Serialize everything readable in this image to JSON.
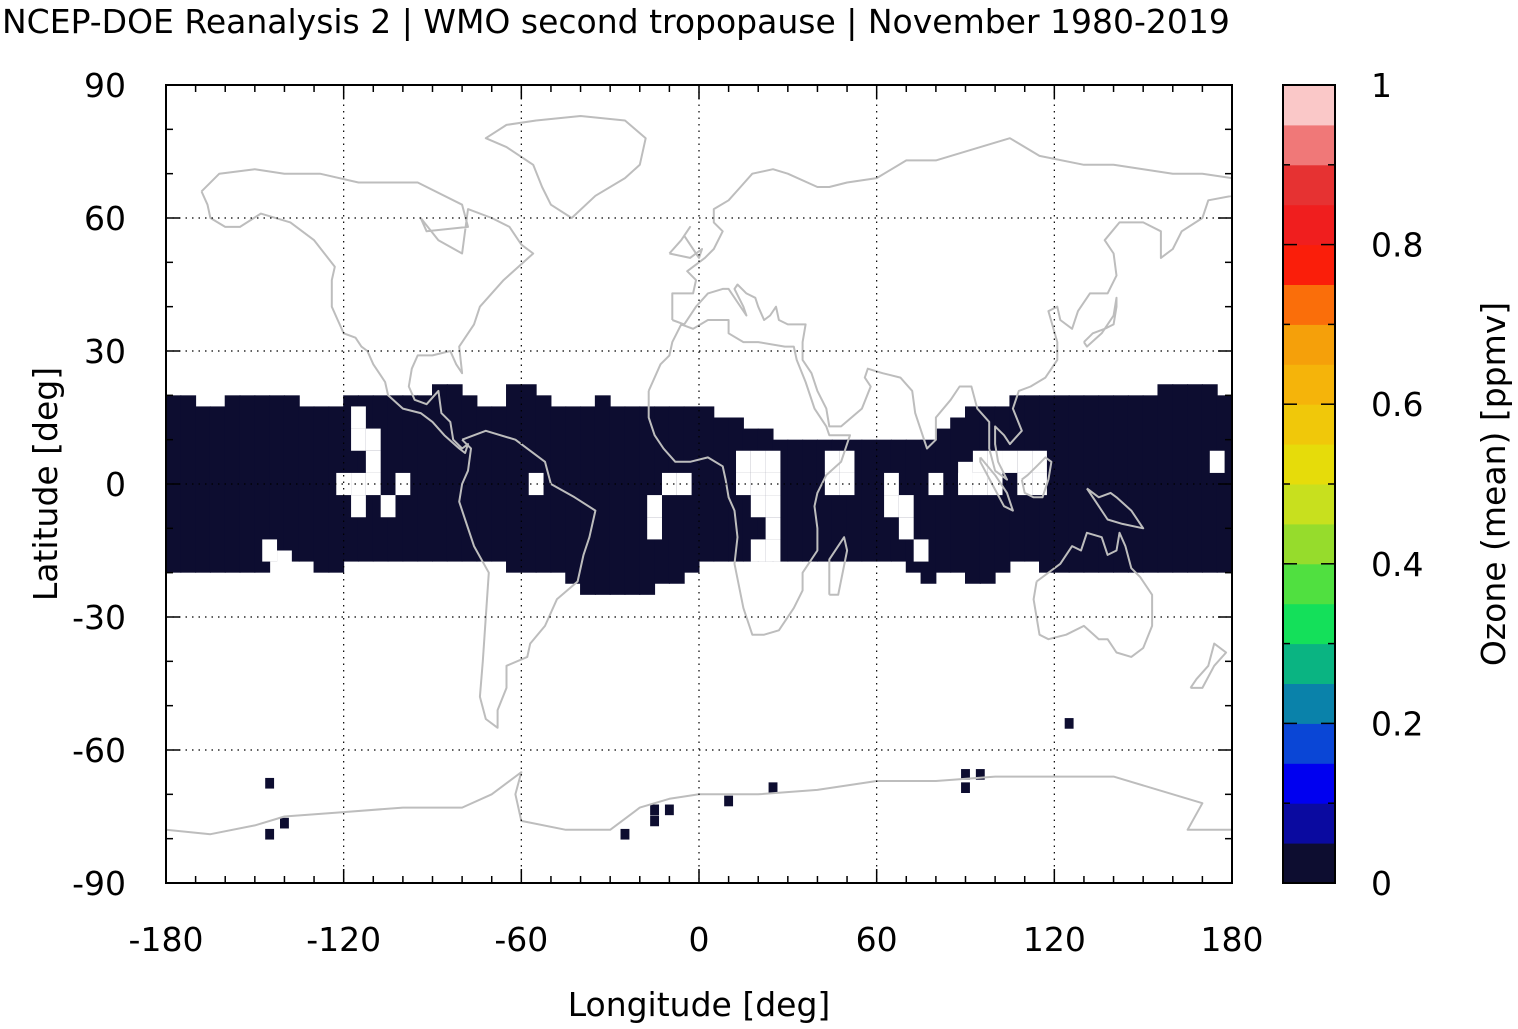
{
  "title": "NCEP-DOE Reanalysis 2 | WMO second tropopause | November 1980-2019",
  "chart_data": {
    "type": "heatmap",
    "title": "NCEP-DOE Reanalysis 2 | WMO second tropopause | November 1980-2019",
    "xlabel": "Longitude [deg]",
    "ylabel": "Latitude [deg]",
    "xlim": [
      -180,
      180
    ],
    "ylim": [
      -90,
      90
    ],
    "xticks": [
      "-180",
      "-120",
      "-60",
      "0",
      "60",
      "120",
      "180"
    ],
    "yticks": [
      "90",
      "60",
      "30",
      "0",
      "-30",
      "-60",
      "-90"
    ],
    "grid": true,
    "colorbar": {
      "label": "Ozone (mean) [ppmv]",
      "range": [
        0,
        1
      ],
      "ticks": [
        "0",
        "0.2",
        "0.4",
        "0.6",
        "0.8",
        "1"
      ],
      "colors": [
        "#0d0d30",
        "#0a0aa0",
        "#0000f0",
        "#0a46d6",
        "#0a82aa",
        "#0ab482",
        "#14e05a",
        "#50e040",
        "#96dc2c",
        "#c8e01e",
        "#e6dc0a",
        "#f0c80a",
        "#f5b40a",
        "#f5a00a",
        "#fa6e0a",
        "#fa1e0a",
        "#f01e1e",
        "#e63232",
        "#f07878",
        "#fac8c8"
      ]
    },
    "value_in_band": 0.0,
    "tropical_band": {
      "lat_min": -20,
      "lat_max": 20,
      "dlon": 5,
      "north_edge": [
        20,
        20,
        17.5,
        17.5,
        20,
        20,
        20,
        20,
        20,
        17.5,
        17.5,
        17.5,
        20,
        20,
        20,
        20,
        20,
        20,
        22.5,
        22.5,
        20,
        17.5,
        17.5,
        22.5,
        22.5,
        20,
        17.5,
        17.5,
        17.5,
        20,
        17.5,
        17.5,
        17.5,
        17.5,
        17.5,
        17.5,
        17.5,
        15,
        15,
        12.5,
        12.5,
        10,
        10,
        10,
        10,
        10,
        10,
        10,
        10,
        10,
        10,
        10,
        12.5,
        15,
        17.5,
        17.5,
        17.5,
        20,
        20,
        20,
        20,
        20,
        20,
        20,
        20,
        20,
        20,
        22.5,
        22.5,
        22.5,
        22.5,
        20,
        20,
        20,
        20,
        22.5,
        22.5,
        22.5,
        22.5,
        22.5,
        22.5,
        22.5,
        22.5,
        22.5,
        22.5,
        20,
        20,
        20
      ],
      "south_edge": [
        -20,
        -20,
        -20,
        -20,
        -20,
        -20,
        -20,
        -17.5,
        -17.5,
        -17.5,
        -20,
        -20,
        -17.5,
        -17.5,
        -17.5,
        -17.5,
        -17.5,
        -17.5,
        -17.5,
        -17.5,
        -17.5,
        -17.5,
        -17.5,
        -20,
        -20,
        -20,
        -20,
        -22.5,
        -25,
        -25,
        -25,
        -25,
        -25,
        -22.5,
        -22.5,
        -20,
        -17.5,
        -17.5,
        -17.5,
        -17.5,
        -17.5,
        -17.5,
        -17.5,
        -17.5,
        -17.5,
        -17.5,
        -17.5,
        -17.5,
        -17.5,
        -17.5,
        -20,
        -22.5,
        -20,
        -20,
        -22.5,
        -22.5,
        -20,
        -17.5,
        -17.5,
        -20,
        -20,
        -20,
        -20,
        -20,
        -20,
        -20,
        -20,
        -20,
        -20,
        -20,
        -20,
        -20,
        -20,
        -20,
        -20,
        -20,
        -20,
        -22.5,
        -22.5,
        -22.5,
        -22.5,
        -22.5,
        -20,
        -20,
        -20,
        -20,
        -20,
        -20
      ]
    },
    "missing_cells": [
      [
        -115,
        10
      ],
      [
        -110,
        10
      ],
      [
        -115,
        15
      ],
      [
        -110,
        5
      ],
      [
        -120,
        0
      ],
      [
        -115,
        0
      ],
      [
        -110,
        0
      ],
      [
        -100,
        0
      ],
      [
        -115,
        -5
      ],
      [
        -105,
        -5
      ],
      [
        -140,
        -17.5
      ],
      [
        -145,
        -15
      ],
      [
        -55,
        0
      ],
      [
        -15,
        -5
      ],
      [
        -15,
        -10
      ],
      [
        -5,
        0
      ],
      [
        -10,
        0
      ],
      [
        15,
        5
      ],
      [
        15,
        0
      ],
      [
        20,
        0
      ],
      [
        20,
        5
      ],
      [
        25,
        5
      ],
      [
        25,
        0
      ],
      [
        25,
        -5
      ],
      [
        20,
        -5
      ],
      [
        25,
        -10
      ],
      [
        20,
        -15
      ],
      [
        25,
        -15
      ],
      [
        45,
        5
      ],
      [
        50,
        5
      ],
      [
        50,
        0
      ],
      [
        45,
        0
      ],
      [
        65,
        0
      ],
      [
        65,
        -5
      ],
      [
        70,
        -5
      ],
      [
        70,
        -10
      ],
      [
        75,
        -15
      ],
      [
        80,
        0
      ],
      [
        90,
        2.5
      ],
      [
        90,
        0
      ],
      [
        95,
        5
      ],
      [
        100,
        5
      ],
      [
        105,
        5
      ],
      [
        110,
        5
      ],
      [
        115,
        5
      ],
      [
        115,
        0
      ],
      [
        110,
        0
      ],
      [
        100,
        0
      ],
      [
        95,
        0
      ],
      [
        175,
        5
      ]
    ],
    "isolated_cells": [
      [
        -145,
        -67.5
      ],
      [
        -140,
        -76.5
      ],
      [
        -145,
        -79
      ],
      [
        -25,
        -79
      ],
      [
        -15,
        -76
      ],
      [
        -15,
        -73.5
      ],
      [
        -10,
        -73.5
      ],
      [
        10,
        -71.5
      ],
      [
        25,
        -68.5
      ],
      [
        90,
        -65.5
      ],
      [
        95,
        -65.5
      ],
      [
        90,
        -68.5
      ],
      [
        125,
        -54
      ]
    ]
  }
}
